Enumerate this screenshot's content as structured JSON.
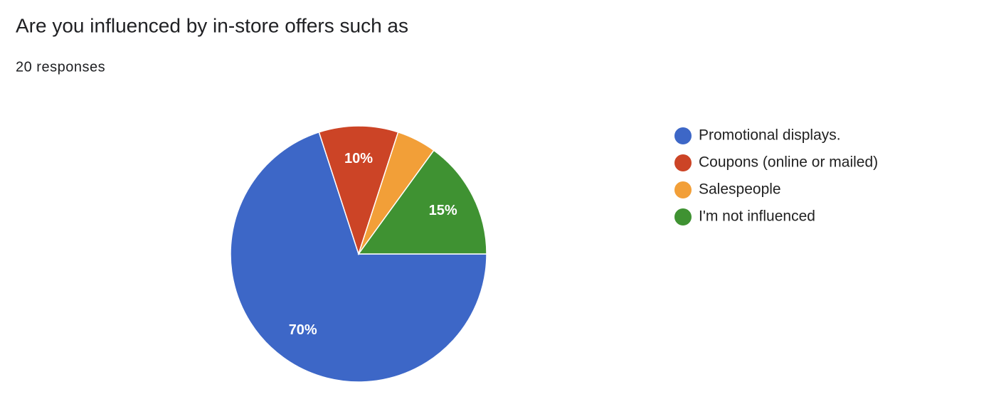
{
  "chart_data": {
    "type": "pie",
    "title": "Are you influenced by in-store offers such as",
    "subtitle": "20 responses",
    "categories": [
      "Promotional displays.",
      "Coupons (online or mailed)",
      "Salespeople",
      "I'm not influenced"
    ],
    "values": [
      70,
      10,
      5,
      15
    ],
    "value_labels": [
      "70%",
      "10%",
      null,
      "15%"
    ],
    "colors": [
      "#3d67c7",
      "#cc4426",
      "#f29f38",
      "#3f9232"
    ],
    "legend": "right"
  }
}
